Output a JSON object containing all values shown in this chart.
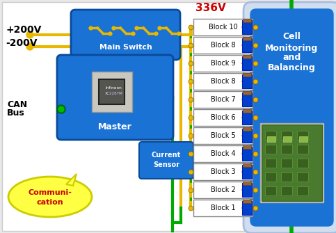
{
  "bg_color": "#e8e8e8",
  "title_336v": "336V",
  "title_336v_color": "#cc0000",
  "voltage_labels": [
    "+200V",
    "-200V"
  ],
  "blocks": [
    "Block 10",
    "Block 8",
    "Block 9",
    "Block 8",
    "Block 7",
    "Block 6",
    "Block 5",
    "Block 4",
    "Block 3",
    "Block 2",
    "Block 1"
  ],
  "main_switch_color": "#1a72d4",
  "master_color": "#1a72d4",
  "cell_monitor_color": "#1a72d4",
  "cell_monitor_outer": "#d0dff0",
  "current_sensor_color": "#1a72d4",
  "comm_color": "#ffff44",
  "comm_text_color": "#cc0000",
  "wire_yellow": "#e8b800",
  "wire_green": "#00aa00",
  "chip_bg": "#888880",
  "chip_body": "#555550",
  "pcb_color": "#4a7a30",
  "pcb_dark": "#3a6020"
}
